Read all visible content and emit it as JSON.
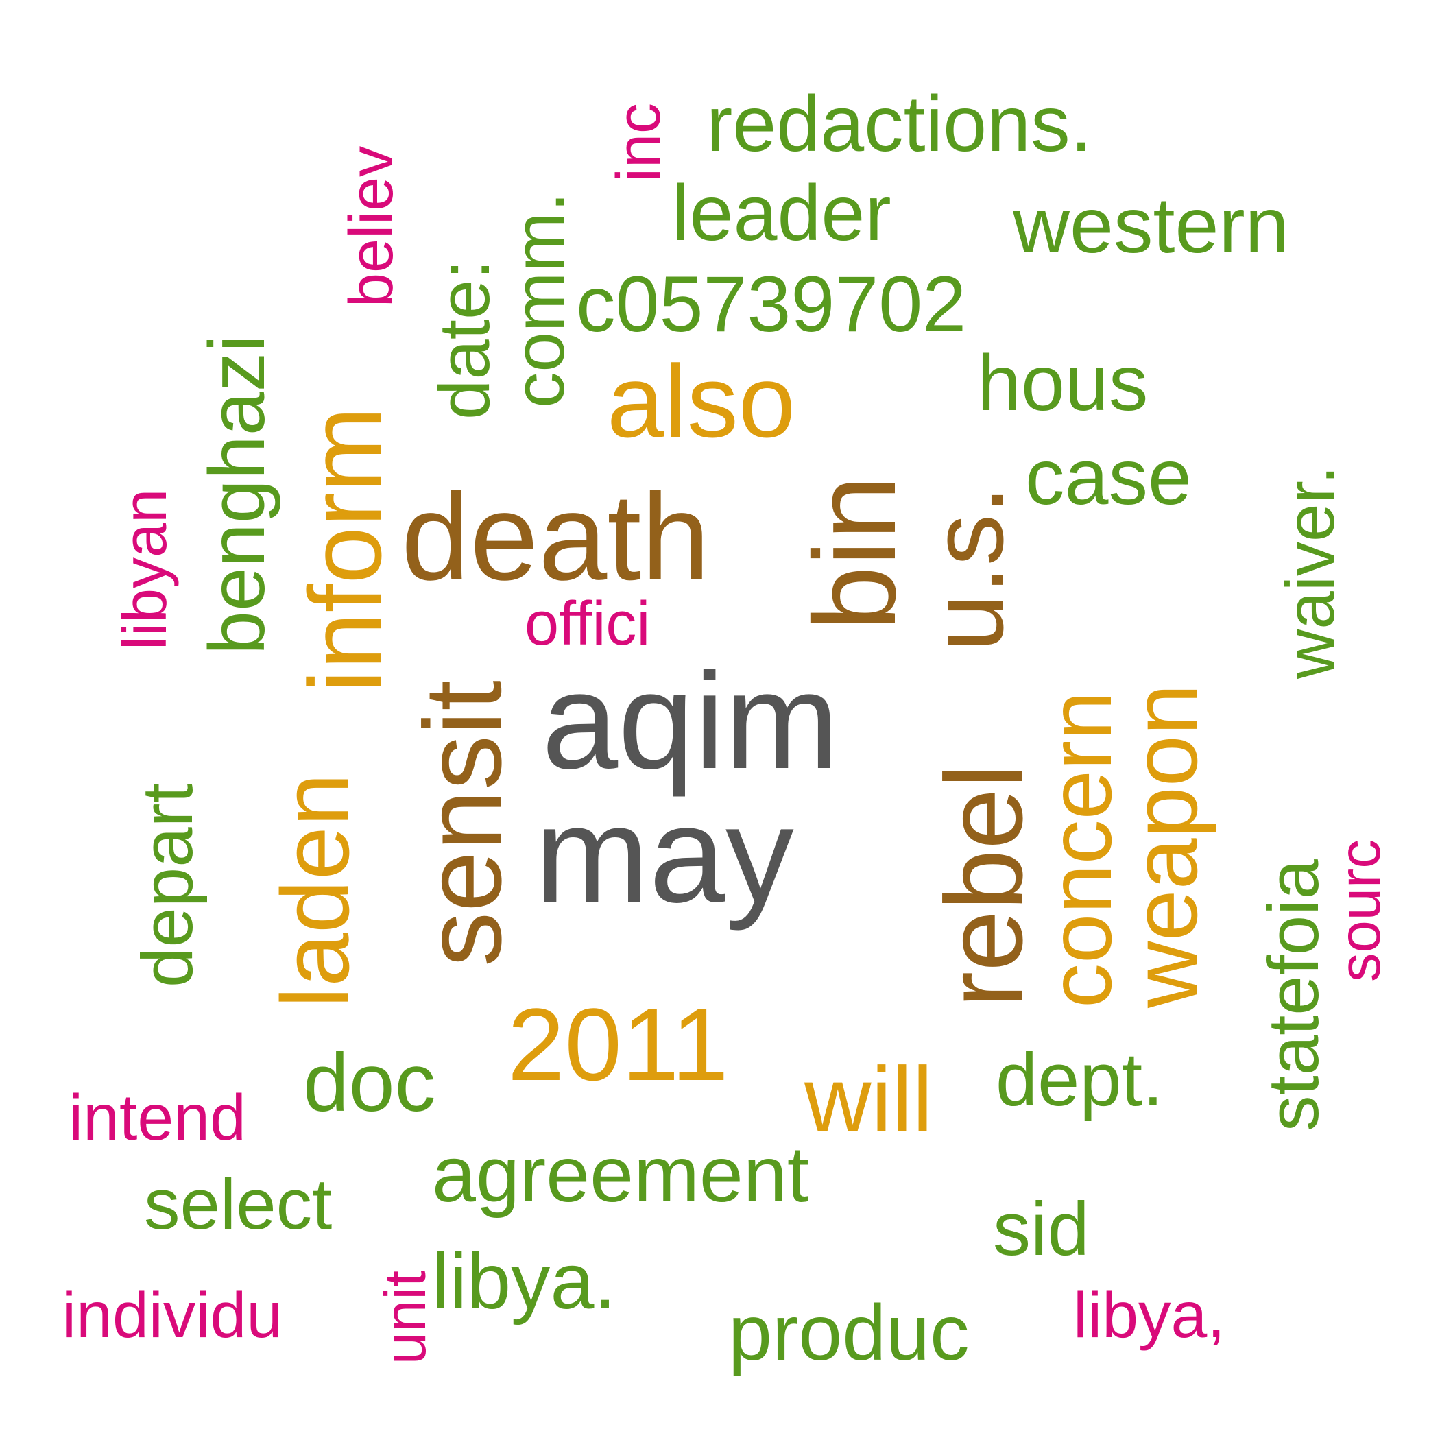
{
  "colors": {
    "dark_gray": "#555555",
    "brown": "#93611B",
    "orange": "#DE9D0D",
    "green": "#589A1E",
    "magenta": "#D90A7A"
  },
  "words": [
    {
      "id": "aqim",
      "text": "aqim",
      "color": "dark_gray"
    },
    {
      "id": "may",
      "text": "may",
      "color": "dark_gray"
    },
    {
      "id": "death",
      "text": "death",
      "color": "brown"
    },
    {
      "id": "sensit",
      "text": "sensit",
      "color": "brown"
    },
    {
      "id": "rebel",
      "text": "rebel",
      "color": "brown"
    },
    {
      "id": "bin",
      "text": "bin",
      "color": "brown"
    },
    {
      "id": "us",
      "text": "u.s.",
      "color": "brown"
    },
    {
      "id": "inform",
      "text": "inform",
      "color": "orange"
    },
    {
      "id": "laden",
      "text": "laden",
      "color": "orange"
    },
    {
      "id": "also",
      "text": "also",
      "color": "orange"
    },
    {
      "id": "concern",
      "text": "concern",
      "color": "orange"
    },
    {
      "id": "weapon",
      "text": "weapon",
      "color": "orange"
    },
    {
      "id": "year2011",
      "text": "2011",
      "color": "orange"
    },
    {
      "id": "will",
      "text": "will",
      "color": "orange"
    },
    {
      "id": "redactions",
      "text": "redactions.",
      "color": "green"
    },
    {
      "id": "leader",
      "text": "leader",
      "color": "green"
    },
    {
      "id": "western",
      "text": "western",
      "color": "green"
    },
    {
      "id": "c05739702",
      "text": "c05739702",
      "color": "green"
    },
    {
      "id": "comm",
      "text": "comm.",
      "color": "green"
    },
    {
      "id": "date",
      "text": "date:",
      "color": "green"
    },
    {
      "id": "benghazi",
      "text": "benghazi",
      "color": "green"
    },
    {
      "id": "hous",
      "text": "hous",
      "color": "green"
    },
    {
      "id": "case",
      "text": "case",
      "color": "green"
    },
    {
      "id": "waiver",
      "text": "waiver.",
      "color": "green"
    },
    {
      "id": "statefoia",
      "text": "statefoia",
      "color": "green"
    },
    {
      "id": "depart",
      "text": "depart",
      "color": "green"
    },
    {
      "id": "doc",
      "text": "doc",
      "color": "green"
    },
    {
      "id": "dept",
      "text": "dept.",
      "color": "green"
    },
    {
      "id": "select",
      "text": "select",
      "color": "green"
    },
    {
      "id": "agreement",
      "text": "agreement",
      "color": "green"
    },
    {
      "id": "sid",
      "text": "sid",
      "color": "green"
    },
    {
      "id": "libya_dot",
      "text": "libya.",
      "color": "green"
    },
    {
      "id": "produc",
      "text": "produc",
      "color": "green"
    },
    {
      "id": "inc",
      "text": "inc",
      "color": "magenta"
    },
    {
      "id": "believ",
      "text": "believ",
      "color": "magenta"
    },
    {
      "id": "libyan",
      "text": "libyan",
      "color": "magenta"
    },
    {
      "id": "offici",
      "text": "offici",
      "color": "magenta"
    },
    {
      "id": "sourc",
      "text": "sourc",
      "color": "magenta"
    },
    {
      "id": "intend",
      "text": "intend",
      "color": "magenta"
    },
    {
      "id": "individu",
      "text": "individu",
      "color": "magenta"
    },
    {
      "id": "unit",
      "text": "unit",
      "color": "magenta"
    },
    {
      "id": "libya_comma",
      "text": "libya,",
      "color": "magenta"
    }
  ]
}
